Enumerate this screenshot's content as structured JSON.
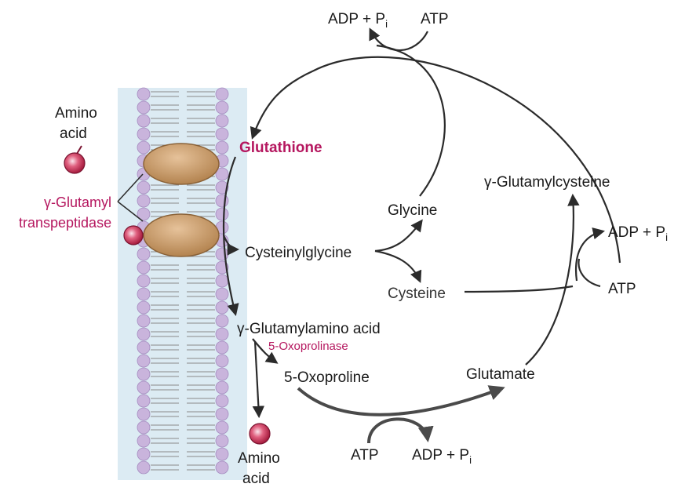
{
  "labels": {
    "glutathione": "Glutathione",
    "cysteinylglycine": "Cysteinylglycine",
    "glycine": "Glycine",
    "cysteine": "Cysteine",
    "gamma_glutamylcysteine": "γ-Glutamylcysteine",
    "gamma_glutamylamino_acid": "γ-Glutamylamino acid",
    "oxoprolinase": "5-Oxoprolinase",
    "oxoproline": "5-Oxoproline",
    "glutamate": "Glutamate",
    "amino_acid_top_line1": "Amino",
    "amino_acid_top_line2": "acid",
    "amino_acid_bottom_line1": "Amino",
    "amino_acid_bottom_line2": "acid",
    "transpeptidase_line1": "γ-Glutamyl",
    "transpeptidase_line2": "transpeptidase"
  },
  "cofactors": {
    "top": {
      "adp": "ADP + P",
      "sub": "i",
      "atp": "ATP"
    },
    "right": {
      "adp": "ADP + P",
      "sub": "i",
      "atp": "ATP"
    },
    "bottom": {
      "adp": "ADP + P",
      "sub": "i",
      "atp": "ATP"
    }
  },
  "colors": {
    "membrane_head": "#c9b4dc",
    "membrane_band": "#d9ebf3",
    "transporter": "#c89a6a",
    "amino_acid_ball": "#d9456a",
    "enzyme_text": "#b5175f"
  }
}
